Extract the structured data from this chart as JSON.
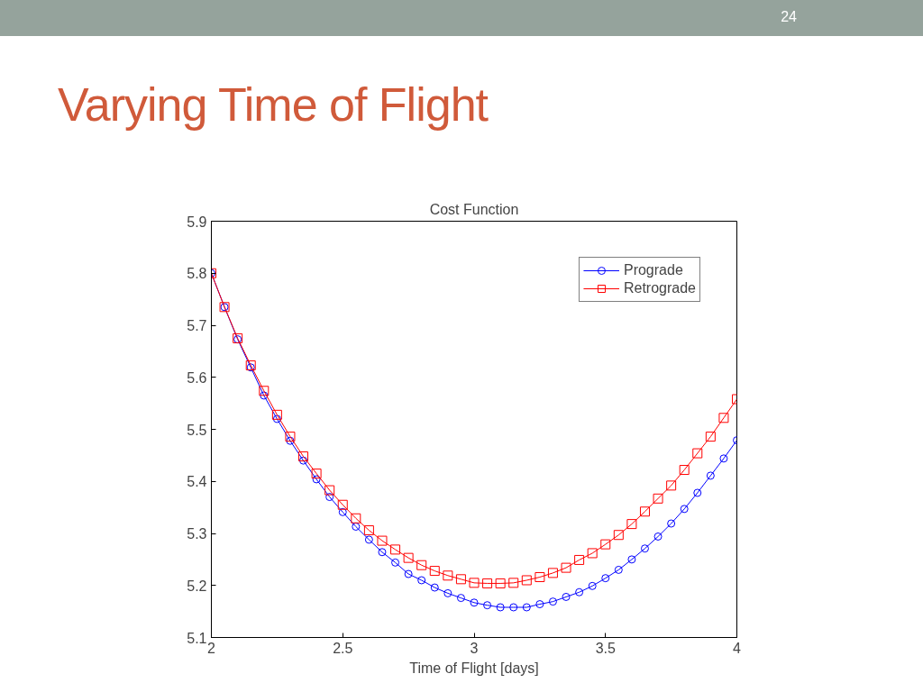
{
  "chart_data": {
    "type": "line",
    "title": "Varying Time of Flight",
    "subtitle": "Cost Function",
    "xlabel": "Time of Flight [days]",
    "annotations": [
      "24"
    ],
    "x": [
      2.0,
      2.05,
      2.1,
      2.15,
      2.2,
      2.25,
      2.3,
      2.35,
      2.4,
      2.45,
      2.5,
      2.55,
      2.6,
      2.65,
      2.7,
      2.75,
      2.8,
      2.85,
      2.9,
      2.95,
      3.0,
      3.05,
      3.1,
      3.15,
      3.2,
      3.25,
      3.3,
      3.35,
      3.4,
      3.45,
      3.5,
      3.55,
      3.6,
      3.65,
      3.7,
      3.75,
      3.8,
      3.85,
      3.9,
      3.95,
      4.0
    ],
    "series": [
      {
        "name": "Prograde",
        "color": "#0000ff",
        "marker": "circle",
        "values": [
          5.8,
          5.735,
          5.673,
          5.619,
          5.565,
          5.52,
          5.478,
          5.44,
          5.404,
          5.37,
          5.341,
          5.313,
          5.288,
          5.264,
          5.244,
          5.222,
          5.21,
          5.196,
          5.185,
          5.176,
          5.167,
          5.162,
          5.158,
          5.158,
          5.158,
          5.164,
          5.169,
          5.178,
          5.187,
          5.199,
          5.214,
          5.23,
          5.25,
          5.271,
          5.294,
          5.319,
          5.347,
          5.378,
          5.411,
          5.444,
          5.479
        ]
      },
      {
        "name": "Retrograde",
        "color": "#ff0000",
        "marker": "square",
        "values": [
          5.8,
          5.735,
          5.675,
          5.623,
          5.574,
          5.528,
          5.486,
          5.448,
          5.415,
          5.383,
          5.355,
          5.329,
          5.306,
          5.286,
          5.269,
          5.253,
          5.239,
          5.228,
          5.219,
          5.212,
          5.205,
          5.204,
          5.204,
          5.205,
          5.21,
          5.216,
          5.224,
          5.234,
          5.249,
          5.262,
          5.279,
          5.297,
          5.318,
          5.342,
          5.367,
          5.392,
          5.422,
          5.454,
          5.486,
          5.522,
          5.558
        ]
      }
    ],
    "xlim": [
      2,
      4
    ],
    "xticks": [
      2,
      2.5,
      3,
      3.5,
      4
    ],
    "ylim": [
      5.1,
      5.9
    ],
    "yticks": [
      5.1,
      5.2,
      5.3,
      5.4,
      5.5,
      5.6,
      5.7,
      5.8,
      5.9
    ],
    "grid": false,
    "legend": "top right",
    "line_style": "solid"
  }
}
